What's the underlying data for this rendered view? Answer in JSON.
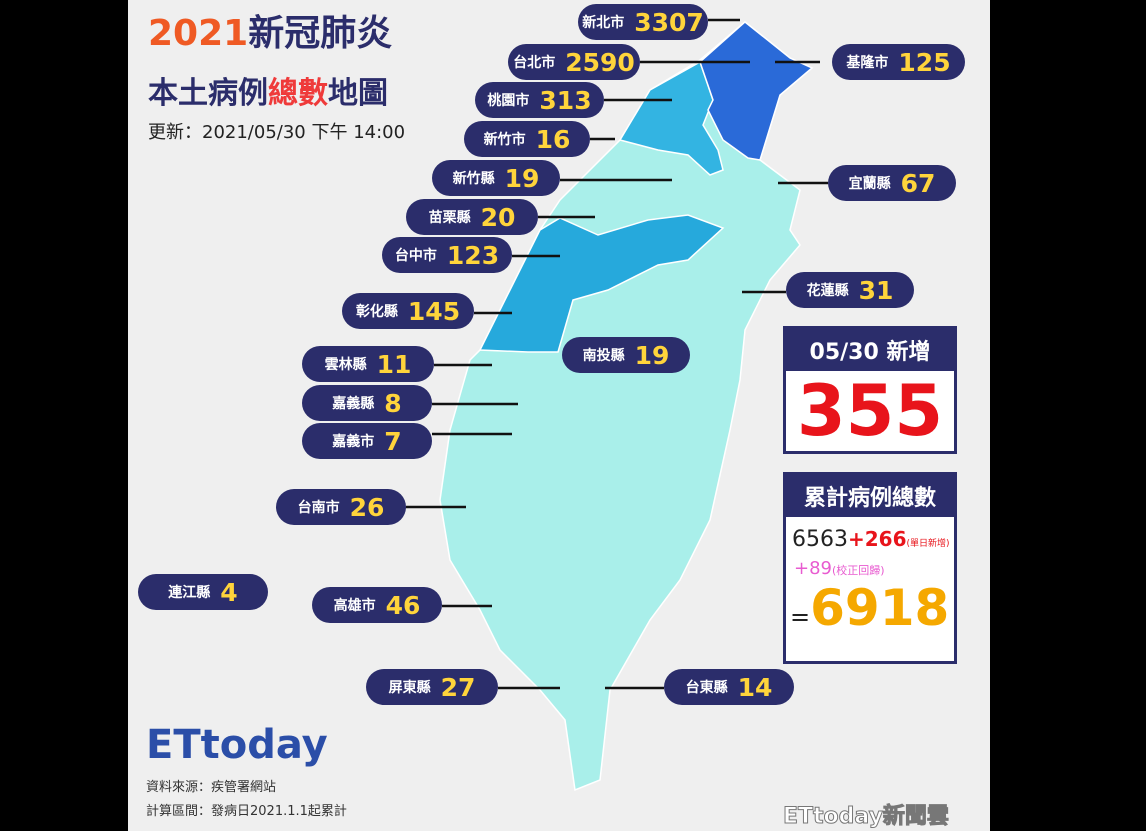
{
  "header": {
    "year": "2021",
    "title_rest": "新冠肺炎",
    "subtitle_a": "本土病例",
    "subtitle_b": "總數",
    "subtitle_c": "地圖",
    "updated": "更新：2021/05/30 下午 14:00"
  },
  "regions": [
    {
      "name": "新北市",
      "cases": 3307
    },
    {
      "name": "台北市",
      "cases": 2590
    },
    {
      "name": "基隆市",
      "cases": 125
    },
    {
      "name": "桃園市",
      "cases": 313
    },
    {
      "name": "新竹市",
      "cases": 16
    },
    {
      "name": "宜蘭縣",
      "cases": 67
    },
    {
      "name": "新竹縣",
      "cases": 19
    },
    {
      "name": "苗栗縣",
      "cases": 20
    },
    {
      "name": "台中市",
      "cases": 123
    },
    {
      "name": "花蓮縣",
      "cases": 31
    },
    {
      "name": "彰化縣",
      "cases": 145
    },
    {
      "name": "南投縣",
      "cases": 19
    },
    {
      "name": "雲林縣",
      "cases": 11
    },
    {
      "name": "嘉義縣",
      "cases": 8
    },
    {
      "name": "嘉義市",
      "cases": 7
    },
    {
      "name": "台南市",
      "cases": 26
    },
    {
      "name": "連江縣",
      "cases": 4
    },
    {
      "name": "高雄市",
      "cases": 46
    },
    {
      "name": "屏東縣",
      "cases": 27
    },
    {
      "name": "台東縣",
      "cases": 14
    }
  ],
  "daily": {
    "label": "05/30 新增",
    "value": 355
  },
  "total": {
    "label": "累計病例總數",
    "base": 6563,
    "added": "+266",
    "added_note": "(單日新增)",
    "corrected": "+89",
    "corrected_note": "(校正回歸)",
    "equals": "=",
    "value": 6918
  },
  "footer": {
    "logo": "ETtoday",
    "source": "資料來源：疾管署網站",
    "range": "計算區間：發病日2021.1.1起累計"
  },
  "watermark": "ETtoday新聞雲"
}
